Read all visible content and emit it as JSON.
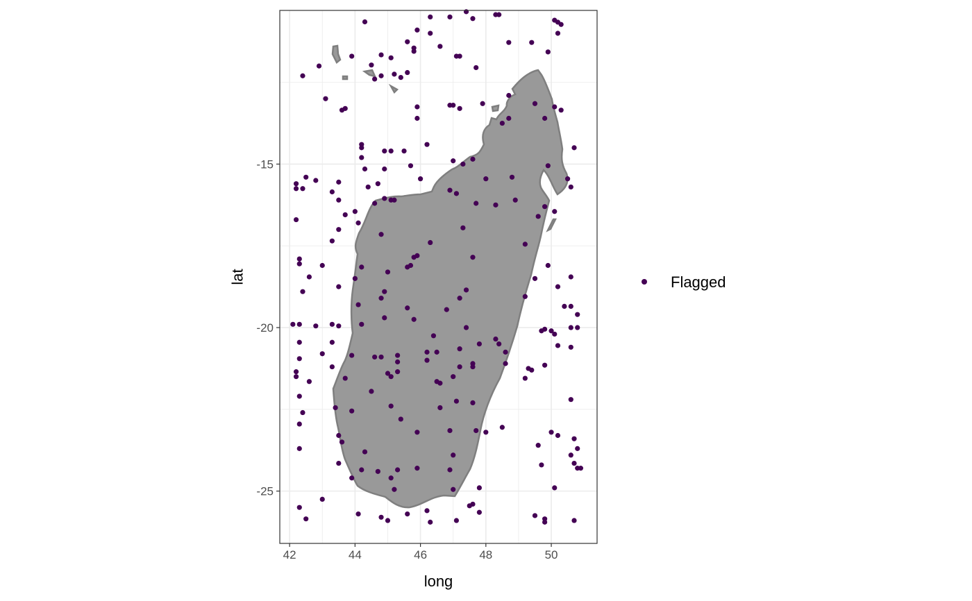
{
  "chart_data": {
    "type": "scatter",
    "title": "",
    "xlabel": "long",
    "ylabel": "lat",
    "xlim": [
      41.7,
      51.4
    ],
    "ylim": [
      -26.6,
      -10.3
    ],
    "x_ticks": [
      42,
      44,
      46,
      48,
      50
    ],
    "x_tick_labels": [
      "42",
      "44",
      "46",
      "48",
      "50"
    ],
    "y_ticks": [
      -15,
      -20,
      -25
    ],
    "y_tick_labels": [
      "-15",
      "-20",
      "-25"
    ],
    "grid": true,
    "theme": "bw",
    "legend": {
      "position": "right",
      "entries": [
        "Flagged"
      ]
    },
    "colors": {
      "point": "#440154",
      "land_fill": "#999999",
      "land_outline": "#7f7f7f",
      "grid": "#ebebeb",
      "panel_border": "#333333"
    },
    "series": [
      {
        "name": "Flagged",
        "points": [
          [
            47.4,
            -10.34
          ],
          [
            48.3,
            -10.43
          ],
          [
            48.4,
            -10.43
          ],
          [
            46.3,
            -10.5
          ],
          [
            46.9,
            -10.5
          ],
          [
            47.6,
            -10.55
          ],
          [
            44.3,
            -10.65
          ],
          [
            50.1,
            -10.6
          ],
          [
            50.2,
            -10.66
          ],
          [
            50.3,
            -10.73
          ],
          [
            45.9,
            -10.9
          ],
          [
            46.3,
            -11.0
          ],
          [
            50.2,
            -11.0
          ],
          [
            45.6,
            -11.26
          ],
          [
            48.7,
            -11.28
          ],
          [
            49.4,
            -11.28
          ],
          [
            46.6,
            -11.4
          ],
          [
            45.8,
            -11.45
          ],
          [
            45.8,
            -11.55
          ],
          [
            49.9,
            -11.57
          ],
          [
            43.9,
            -11.7
          ],
          [
            45.1,
            -11.75
          ],
          [
            47.1,
            -11.7
          ],
          [
            47.2,
            -11.7
          ],
          [
            44.8,
            -11.66
          ],
          [
            44.5,
            -11.97
          ],
          [
            42.9,
            -12.0
          ],
          [
            47.7,
            -12.05
          ],
          [
            45.2,
            -12.25
          ],
          [
            45.6,
            -12.2
          ],
          [
            44.8,
            -12.3
          ],
          [
            45.4,
            -12.35
          ],
          [
            42.4,
            -12.3
          ],
          [
            44.6,
            -12.4
          ],
          [
            48.7,
            -12.9
          ],
          [
            43.1,
            -13.0
          ],
          [
            46.9,
            -13.2
          ],
          [
            47.0,
            -13.2
          ],
          [
            47.2,
            -13.3
          ],
          [
            47.9,
            -13.15
          ],
          [
            49.5,
            -13.15
          ],
          [
            50.1,
            -13.25
          ],
          [
            50.3,
            -13.35
          ],
          [
            45.9,
            -13.25
          ],
          [
            43.6,
            -13.35
          ],
          [
            43.7,
            -13.3
          ],
          [
            48.7,
            -13.6
          ],
          [
            48.5,
            -13.75
          ],
          [
            45.9,
            -13.6
          ],
          [
            49.8,
            -13.6
          ],
          [
            44.2,
            -14.4
          ],
          [
            44.2,
            -14.5
          ],
          [
            46.2,
            -14.4
          ],
          [
            50.7,
            -14.5
          ],
          [
            44.9,
            -14.6
          ],
          [
            45.1,
            -14.6
          ],
          [
            45.5,
            -14.6
          ],
          [
            44.2,
            -14.8
          ],
          [
            47.0,
            -14.9
          ],
          [
            47.6,
            -14.85
          ],
          [
            47.3,
            -15.0
          ],
          [
            45.7,
            -15.05
          ],
          [
            44.3,
            -15.15
          ],
          [
            44.9,
            -15.15
          ],
          [
            49.9,
            -15.05
          ],
          [
            42.5,
            -15.4
          ],
          [
            42.8,
            -15.5
          ],
          [
            48.0,
            -15.45
          ],
          [
            48.8,
            -15.4
          ],
          [
            50.5,
            -15.45
          ],
          [
            46.0,
            -15.45
          ],
          [
            43.5,
            -15.55
          ],
          [
            44.7,
            -15.6
          ],
          [
            44.4,
            -15.7
          ],
          [
            42.2,
            -15.6
          ],
          [
            42.2,
            -15.75
          ],
          [
            42.4,
            -15.75
          ],
          [
            46.9,
            -15.8
          ],
          [
            50.6,
            -15.7
          ],
          [
            43.3,
            -15.85
          ],
          [
            47.1,
            -15.9
          ],
          [
            43.5,
            -16.1
          ],
          [
            44.9,
            -16.05
          ],
          [
            45.1,
            -16.1
          ],
          [
            45.2,
            -16.1
          ],
          [
            44.6,
            -16.2
          ],
          [
            48.9,
            -16.1
          ],
          [
            47.7,
            -16.2
          ],
          [
            48.3,
            -16.25
          ],
          [
            49.8,
            -16.3
          ],
          [
            50.1,
            -16.45
          ],
          [
            44.0,
            -16.45
          ],
          [
            43.7,
            -16.55
          ],
          [
            49.6,
            -16.6
          ],
          [
            42.2,
            -16.7
          ],
          [
            44.1,
            -16.8
          ],
          [
            47.3,
            -16.95
          ],
          [
            43.5,
            -17.0
          ],
          [
            44.8,
            -17.15
          ],
          [
            43.3,
            -17.35
          ],
          [
            46.3,
            -17.4
          ],
          [
            49.2,
            -17.45
          ],
          [
            45.9,
            -17.8
          ],
          [
            45.8,
            -17.85
          ],
          [
            47.6,
            -17.85
          ],
          [
            42.3,
            -17.9
          ],
          [
            42.3,
            -18.05
          ],
          [
            45.7,
            -18.1
          ],
          [
            49.9,
            -18.1
          ],
          [
            43.0,
            -18.1
          ],
          [
            45.6,
            -18.15
          ],
          [
            44.2,
            -18.15
          ],
          [
            45.0,
            -18.3
          ],
          [
            42.6,
            -18.45
          ],
          [
            44.0,
            -18.5
          ],
          [
            49.5,
            -18.5
          ],
          [
            50.6,
            -18.45
          ],
          [
            43.5,
            -18.75
          ],
          [
            50.2,
            -18.75
          ],
          [
            47.4,
            -18.85
          ],
          [
            44.9,
            -18.9
          ],
          [
            42.4,
            -18.9
          ],
          [
            44.8,
            -19.1
          ],
          [
            47.2,
            -19.1
          ],
          [
            49.2,
            -19.05
          ],
          [
            44.1,
            -19.3
          ],
          [
            45.6,
            -19.4
          ],
          [
            46.8,
            -19.45
          ],
          [
            50.4,
            -19.35
          ],
          [
            50.6,
            -19.35
          ],
          [
            50.8,
            -19.6
          ],
          [
            44.9,
            -19.7
          ],
          [
            45.8,
            -19.75
          ],
          [
            44.2,
            -19.9
          ],
          [
            42.1,
            -19.9
          ],
          [
            42.3,
            -19.9
          ],
          [
            42.8,
            -19.95
          ],
          [
            43.3,
            -19.9
          ],
          [
            43.5,
            -19.95
          ],
          [
            47.4,
            -20.0
          ],
          [
            49.8,
            -20.05
          ],
          [
            49.7,
            -20.1
          ],
          [
            50.0,
            -20.1
          ],
          [
            50.6,
            -20.0
          ],
          [
            50.8,
            -20.0
          ],
          [
            50.1,
            -20.2
          ],
          [
            46.4,
            -20.25
          ],
          [
            42.3,
            -20.45
          ],
          [
            43.3,
            -20.45
          ],
          [
            48.3,
            -20.35
          ],
          [
            48.4,
            -20.5
          ],
          [
            47.8,
            -20.5
          ],
          [
            50.2,
            -20.55
          ],
          [
            50.6,
            -20.6
          ],
          [
            47.2,
            -20.65
          ],
          [
            46.2,
            -20.75
          ],
          [
            46.5,
            -20.75
          ],
          [
            48.6,
            -20.75
          ],
          [
            43.0,
            -20.8
          ],
          [
            43.9,
            -20.85
          ],
          [
            45.3,
            -20.85
          ],
          [
            44.6,
            -20.9
          ],
          [
            44.8,
            -20.9
          ],
          [
            42.3,
            -20.95
          ],
          [
            46.2,
            -21.0
          ],
          [
            45.3,
            -21.05
          ],
          [
            47.6,
            -21.1
          ],
          [
            48.6,
            -21.1
          ],
          [
            49.8,
            -21.15
          ],
          [
            43.3,
            -21.2
          ],
          [
            47.2,
            -21.2
          ],
          [
            47.6,
            -21.2
          ],
          [
            49.3,
            -21.25
          ],
          [
            49.4,
            -21.3
          ],
          [
            42.2,
            -21.35
          ],
          [
            45.3,
            -21.35
          ],
          [
            45.0,
            -21.4
          ],
          [
            45.1,
            -21.5
          ],
          [
            42.2,
            -21.5
          ],
          [
            43.7,
            -21.55
          ],
          [
            49.2,
            -21.55
          ],
          [
            47.0,
            -21.5
          ],
          [
            42.6,
            -21.65
          ],
          [
            46.5,
            -21.65
          ],
          [
            46.6,
            -21.7
          ],
          [
            44.5,
            -21.95
          ],
          [
            50.6,
            -22.2
          ],
          [
            42.3,
            -22.1
          ],
          [
            47.1,
            -22.25
          ],
          [
            47.6,
            -22.3
          ],
          [
            43.4,
            -22.45
          ],
          [
            45.1,
            -22.4
          ],
          [
            46.6,
            -22.45
          ],
          [
            42.4,
            -22.6
          ],
          [
            43.9,
            -22.55
          ],
          [
            45.4,
            -22.8
          ],
          [
            42.3,
            -22.95
          ],
          [
            48.5,
            -23.05
          ],
          [
            46.9,
            -23.15
          ],
          [
            45.9,
            -23.2
          ],
          [
            47.7,
            -23.15
          ],
          [
            48.0,
            -23.2
          ],
          [
            50.0,
            -23.2
          ],
          [
            50.2,
            -23.3
          ],
          [
            43.5,
            -23.3
          ],
          [
            50.7,
            -23.4
          ],
          [
            43.6,
            -23.5
          ],
          [
            49.6,
            -23.6
          ],
          [
            42.3,
            -23.7
          ],
          [
            50.8,
            -23.7
          ],
          [
            44.3,
            -23.8
          ],
          [
            47.0,
            -23.9
          ],
          [
            50.6,
            -23.9
          ],
          [
            43.5,
            -24.15
          ],
          [
            49.7,
            -24.2
          ],
          [
            50.7,
            -24.15
          ],
          [
            50.8,
            -24.3
          ],
          [
            50.9,
            -24.3
          ],
          [
            45.3,
            -24.35
          ],
          [
            45.9,
            -24.3
          ],
          [
            44.2,
            -24.35
          ],
          [
            46.9,
            -24.35
          ],
          [
            44.7,
            -24.4
          ],
          [
            45.1,
            -24.6
          ],
          [
            43.9,
            -24.6
          ],
          [
            45.2,
            -24.95
          ],
          [
            47.0,
            -24.95
          ],
          [
            47.8,
            -24.9
          ],
          [
            50.1,
            -24.9
          ],
          [
            43.0,
            -25.25
          ],
          [
            47.6,
            -25.4
          ],
          [
            47.5,
            -25.45
          ],
          [
            42.3,
            -25.5
          ],
          [
            47.8,
            -25.65
          ],
          [
            46.2,
            -25.6
          ],
          [
            44.1,
            -25.7
          ],
          [
            45.6,
            -25.7
          ],
          [
            49.5,
            -25.75
          ],
          [
            44.8,
            -25.8
          ],
          [
            49.8,
            -25.85
          ],
          [
            42.5,
            -25.85
          ],
          [
            45.0,
            -25.9
          ],
          [
            46.3,
            -25.95
          ],
          [
            47.1,
            -25.9
          ],
          [
            49.8,
            -25.95
          ],
          [
            50.7,
            -25.9
          ]
        ]
      }
    ]
  }
}
